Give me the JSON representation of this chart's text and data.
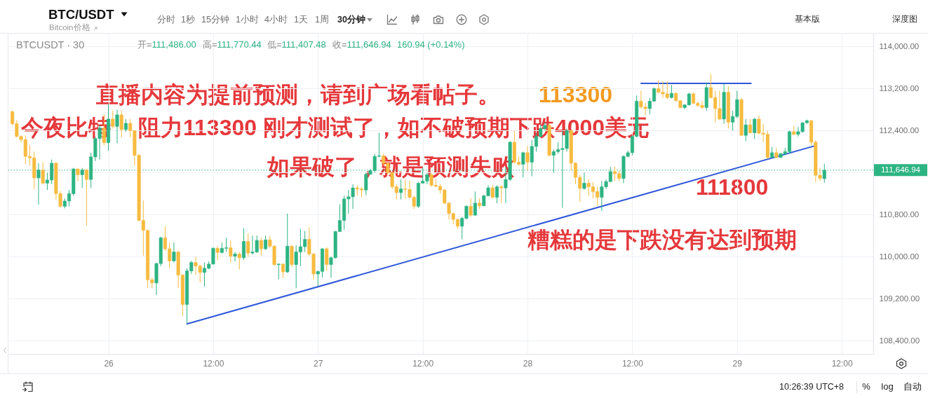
{
  "chart_data": {
    "type": "candlestick",
    "title": "BTC/USDT",
    "subtitle": "Bitcoin价格",
    "annotations": [
      "BTCUSDT · 30",
      "开=111,486.00",
      "高=111,770.44",
      "低=111,407.48",
      "收=111,646.94",
      "160.94 (+0.14%)",
      "直播内容为提前预测，请到广场看帖子。",
      "今夜比特",
      "阻力113300 刚才测试了，如不破预期下跌4000美元",
      "如果破了，就是预测失败",
      "113300",
      "111800",
      "糟糕的是下跌没有达到预期",
      "分时",
      "1秒",
      "15分钟",
      "1小时",
      "4小时",
      "1天",
      "1周",
      "30分钟",
      "基本版",
      "深度图",
      "10:26:39 UTC+8",
      "%",
      "log",
      "自动"
    ],
    "x": [
      "--08-25T13:00",
      "--08-25T13:30",
      "--08-25T14:00",
      "--08-25T14:30",
      "--08-25T15:00",
      "--08-25T15:30",
      "--08-25T16:00",
      "--08-25T16:30",
      "--08-25T17:00",
      "--08-25T17:30",
      "--08-25T18:00",
      "--08-25T18:30",
      "--08-25T19:00",
      "--08-25T19:30",
      "--08-25T20:00",
      "--08-25T20:30",
      "--08-25T21:00",
      "--08-25T21:30",
      "--08-25T22:00",
      "--08-25T22:30",
      "--08-25T23:00",
      "--08-25T23:30",
      "--08-26T00:00",
      "--08-26T00:30",
      "--08-26T01:00",
      "--08-26T01:30",
      "--08-26T02:00",
      "--08-26T02:30",
      "--08-26T03:00",
      "--08-26T03:30",
      "--08-26T04:00",
      "--08-26T04:30",
      "--08-26T05:00",
      "--08-26T05:30",
      "--08-26T06:00",
      "--08-26T06:30",
      "--08-26T07:00",
      "--08-26T07:30",
      "--08-26T08:00",
      "--08-26T08:30",
      "--08-26T09:00",
      "--08-26T09:30",
      "--08-26T10:00",
      "--08-26T10:30",
      "--08-26T11:00",
      "--08-26T11:30",
      "--08-26T12:00",
      "--08-26T12:30",
      "--08-26T13:00",
      "--08-26T13:30",
      "--08-26T14:00",
      "--08-26T14:30",
      "--08-26T15:00",
      "--08-26T15:30",
      "--08-26T16:00",
      "--08-26T16:30",
      "--08-26T17:00",
      "--08-26T17:30",
      "--08-26T18:00",
      "--08-26T18:30",
      "--08-26T19:00",
      "--08-26T19:30",
      "--08-26T20:00",
      "--08-26T20:30",
      "--08-26T21:00",
      "--08-26T21:30",
      "--08-26T22:00",
      "--08-26T22:30",
      "--08-26T23:00",
      "--08-26T23:30",
      "--08-27T00:00",
      "--08-27T00:30",
      "--08-27T01:00",
      "--08-27T01:30",
      "--08-27T02:00",
      "--08-27T02:30",
      "--08-27T03:00",
      "--08-27T03:30",
      "--08-27T04:00",
      "--08-27T04:30",
      "--08-27T05:00",
      "--08-27T05:30",
      "--08-27T06:00",
      "--08-27T06:30",
      "--08-27T07:00",
      "--08-27T07:30",
      "--08-27T08:00",
      "--08-27T08:30",
      "--08-27T09:00",
      "--08-27T09:30",
      "--08-27T10:00",
      "--08-27T10:30",
      "--08-27T11:00",
      "--08-27T11:30",
      "--08-27T12:00",
      "--08-27T12:30",
      "--08-27T13:00",
      "--08-27T13:30",
      "--08-27T14:00",
      "--08-27T14:30",
      "--08-27T15:00",
      "--08-27T15:30",
      "--08-27T16:00",
      "--08-27T16:30",
      "--08-27T17:00",
      "--08-27T17:30",
      "--08-27T18:00",
      "--08-27T18:30",
      "--08-27T19:00",
      "--08-27T19:30",
      "--08-27T20:00",
      "--08-27T20:30",
      "--08-27T21:00",
      "--08-27T21:30",
      "--08-27T22:00",
      "--08-27T22:30",
      "--08-27T23:00",
      "--08-27T23:30",
      "--08-28T00:00",
      "--08-28T00:30",
      "--08-28T01:00",
      "--08-28T01:30",
      "--08-28T02:00",
      "--08-28T02:30",
      "--08-28T03:00",
      "--08-28T03:30",
      "--08-28T04:00",
      "--08-28T04:30",
      "--08-28T05:00",
      "--08-28T05:30",
      "--08-28T06:00",
      "--08-28T06:30",
      "--08-28T07:00",
      "--08-28T07:30",
      "--08-28T08:00",
      "--08-28T08:30",
      "--08-28T09:00",
      "--08-28T09:30",
      "--08-28T10:00",
      "--08-28T10:30",
      "--08-28T11:00",
      "--08-28T11:30",
      "--08-28T12:00",
      "--08-28T12:30",
      "--08-28T13:00",
      "--08-28T13:30",
      "--08-28T14:00",
      "--08-28T14:30",
      "--08-28T15:00",
      "--08-28T15:30",
      "--08-28T16:00",
      "--08-28T16:30",
      "--08-28T17:00",
      "--08-28T17:30",
      "--08-28T18:00",
      "--08-28T18:30",
      "--08-28T19:00",
      "--08-28T19:30",
      "--08-28T20:00",
      "--08-28T20:30",
      "--08-28T21:00",
      "--08-28T21:30",
      "--08-28T22:00",
      "--08-28T22:30",
      "--08-28T23:00",
      "--08-28T23:30",
      "--08-29T00:00",
      "--08-29T00:30",
      "--08-29T01:00",
      "--08-29T01:30",
      "--08-29T02:00",
      "--08-29T02:30",
      "--08-29T03:00",
      "--08-29T03:30",
      "--08-29T04:00",
      "--08-29T04:30",
      "--08-29T05:00",
      "--08-29T05:30",
      "--08-29T06:00",
      "--08-29T06:30",
      "--08-29T07:00",
      "--08-29T07:30",
      "--08-29T08:00",
      "--08-29T08:30",
      "--08-29T09:00",
      "--08-29T09:30",
      "--08-29T10:00"
    ],
    "ohlc": [
      [
        112760,
        112780,
        112500,
        112530
      ],
      [
        112530,
        112600,
        112270,
        112290
      ],
      [
        112290,
        112310,
        112180,
        112230
      ],
      [
        112230,
        112310,
        111760,
        111910
      ],
      [
        111910,
        112130,
        111730,
        111880
      ],
      [
        111880,
        112000,
        111290,
        111500
      ],
      [
        111500,
        111780,
        110990,
        111650
      ],
      [
        111650,
        111800,
        111380,
        111400
      ],
      [
        111400,
        111600,
        111270,
        111460
      ],
      [
        111460,
        111850,
        111380,
        111780
      ],
      [
        111780,
        111800,
        111080,
        111200
      ],
      [
        111200,
        111250,
        110930,
        110960
      ],
      [
        110960,
        111110,
        110920,
        111060
      ],
      [
        111060,
        111270,
        110960,
        111200
      ],
      [
        111200,
        111690,
        111160,
        111670
      ],
      [
        111670,
        111680,
        111440,
        111560
      ],
      [
        111560,
        111690,
        111310,
        111650
      ],
      [
        111650,
        111670,
        110590,
        111470
      ],
      [
        111470,
        111980,
        111310,
        111900
      ],
      [
        111900,
        112290,
        111820,
        112250
      ],
      [
        112250,
        112510,
        111850,
        112450
      ],
      [
        112450,
        112710,
        112120,
        112170
      ],
      [
        112170,
        112910,
        112020,
        112620
      ],
      [
        112620,
        112780,
        112440,
        112480
      ],
      [
        112480,
        112800,
        112160,
        112700
      ],
      [
        112700,
        112780,
        112270,
        112420
      ],
      [
        112420,
        112620,
        112380,
        112540
      ],
      [
        112540,
        112620,
        112270,
        112400
      ],
      [
        112400,
        112400,
        111730,
        111930
      ],
      [
        111930,
        111960,
        110680,
        110690
      ],
      [
        110690,
        111070,
        110020,
        110500
      ],
      [
        110500,
        110520,
        109400,
        109560
      ],
      [
        109560,
        109600,
        109400,
        109500
      ],
      [
        109500,
        109890,
        109270,
        109870
      ],
      [
        109870,
        110380,
        109820,
        110360
      ],
      [
        110360,
        110580,
        110110,
        110150
      ],
      [
        110150,
        110270,
        109780,
        109920
      ],
      [
        109920,
        110270,
        109890,
        110090
      ],
      [
        110090,
        110110,
        109400,
        109650
      ],
      [
        109650,
        109670,
        108870,
        109090
      ],
      [
        109090,
        109780,
        108730,
        109730
      ],
      [
        109730,
        109920,
        109670,
        109890
      ],
      [
        109890,
        110000,
        109650,
        109820
      ],
      [
        109820,
        109850,
        109510,
        109700
      ],
      [
        109700,
        109890,
        109430,
        109780
      ],
      [
        109780,
        109910,
        109760,
        109860
      ],
      [
        109860,
        110180,
        109850,
        110160
      ],
      [
        110160,
        110200,
        109930,
        110080
      ],
      [
        110080,
        110270,
        110060,
        110160
      ],
      [
        110160,
        110360,
        110090,
        110170
      ],
      [
        110170,
        110310,
        109890,
        110010
      ],
      [
        110010,
        110090,
        109910,
        110050
      ],
      [
        110050,
        110090,
        109760,
        109980
      ],
      [
        109980,
        110540,
        109940,
        110290
      ],
      [
        110290,
        110440,
        110000,
        110070
      ],
      [
        110070,
        110400,
        110040,
        110090
      ],
      [
        110090,
        110400,
        110070,
        110310
      ],
      [
        110310,
        110360,
        110020,
        110150
      ],
      [
        110150,
        110400,
        110130,
        110320
      ],
      [
        110320,
        110400,
        110160,
        110200
      ],
      [
        110200,
        110220,
        109820,
        109850
      ],
      [
        109850,
        109870,
        109570,
        109860
      ],
      [
        109860,
        109870,
        109600,
        109710
      ],
      [
        109710,
        110820,
        109690,
        110200
      ],
      [
        110200,
        110220,
        109800,
        109850
      ],
      [
        109850,
        110220,
        109400,
        110090
      ],
      [
        110090,
        110530,
        109820,
        110190
      ],
      [
        110190,
        110490,
        110090,
        110330
      ],
      [
        110330,
        110560,
        110020,
        110050
      ],
      [
        110050,
        110070,
        109560,
        109670
      ],
      [
        109670,
        109730,
        109440,
        109720
      ],
      [
        109720,
        110160,
        109600,
        110150
      ],
      [
        110150,
        110180,
        109730,
        109850
      ],
      [
        109850,
        110000,
        109600,
        109980
      ],
      [
        109980,
        110490,
        109960,
        110480
      ],
      [
        110480,
        111000,
        110470,
        110690
      ],
      [
        110690,
        111160,
        110510,
        111100
      ],
      [
        111100,
        111270,
        110820,
        111140
      ],
      [
        111140,
        111380,
        110910,
        111310
      ],
      [
        111310,
        111360,
        111160,
        111290
      ],
      [
        111290,
        111330,
        111130,
        111270
      ],
      [
        111270,
        111600,
        111170,
        111570
      ],
      [
        111570,
        111670,
        111560,
        111640
      ],
      [
        111640,
        111960,
        111600,
        111910
      ],
      [
        111910,
        112360,
        111890,
        111920
      ],
      [
        111920,
        111960,
        111730,
        111780
      ],
      [
        111780,
        111800,
        111560,
        111600
      ],
      [
        111600,
        111620,
        111290,
        111330
      ],
      [
        111330,
        111380,
        111090,
        111220
      ],
      [
        111220,
        111470,
        111090,
        111290
      ],
      [
        111290,
        111470,
        111110,
        111280
      ],
      [
        111280,
        111440,
        111110,
        111130
      ],
      [
        111130,
        111160,
        110910,
        110960
      ],
      [
        110960,
        111420,
        110930,
        111400
      ],
      [
        111400,
        111690,
        111390,
        111440
      ],
      [
        111440,
        111600,
        111380,
        111560
      ],
      [
        111560,
        111600,
        111330,
        111360
      ],
      [
        111360,
        111470,
        111330,
        111340
      ],
      [
        111340,
        111380,
        111200,
        111270
      ],
      [
        111270,
        111290,
        111000,
        111020
      ],
      [
        111020,
        111040,
        110710,
        110820
      ],
      [
        110820,
        110840,
        110620,
        110710
      ],
      [
        110710,
        110730,
        110530,
        110580
      ],
      [
        110580,
        110760,
        110330,
        110730
      ],
      [
        110730,
        110980,
        110710,
        110960
      ],
      [
        110960,
        111110,
        110760,
        110790
      ],
      [
        110790,
        111240,
        110780,
        111020
      ],
      [
        111020,
        111110,
        110910,
        110970
      ],
      [
        110970,
        111180,
        110960,
        111160
      ],
      [
        111160,
        111360,
        111150,
        111310
      ],
      [
        111310,
        111360,
        111110,
        111130
      ],
      [
        111130,
        111360,
        111020,
        111330
      ],
      [
        111330,
        111360,
        111020,
        111310
      ],
      [
        111310,
        111710,
        111020,
        111470
      ],
      [
        111470,
        112200,
        111440,
        112180
      ],
      [
        112180,
        112400,
        111780,
        111800
      ],
      [
        111800,
        111910,
        111730,
        111760
      ],
      [
        111760,
        112000,
        111510,
        111980
      ],
      [
        111980,
        112110,
        111640,
        111800
      ],
      [
        111800,
        112220,
        111530,
        112100
      ],
      [
        112100,
        112360,
        112000,
        112290
      ],
      [
        112290,
        112510,
        112270,
        112440
      ],
      [
        112440,
        112560,
        112400,
        112500
      ],
      [
        112500,
        112530,
        111910,
        111930
      ],
      [
        111930,
        112040,
        111600,
        112000
      ],
      [
        112000,
        112180,
        111960,
        112040
      ],
      [
        112040,
        112400,
        110930,
        112060
      ],
      [
        112060,
        112440,
        112000,
        112400
      ],
      [
        112400,
        112420,
        111640,
        111780
      ],
      [
        111780,
        111800,
        111380,
        111510
      ],
      [
        111510,
        111560,
        111040,
        111300
      ],
      [
        111300,
        111600,
        111270,
        111400
      ],
      [
        111400,
        111470,
        111160,
        111330
      ],
      [
        111330,
        111420,
        111110,
        111240
      ],
      [
        111240,
        111330,
        110960,
        111130
      ],
      [
        111130,
        111440,
        110870,
        111330
      ],
      [
        111330,
        111470,
        111290,
        111430
      ],
      [
        111430,
        111710,
        111420,
        111620
      ],
      [
        111620,
        111710,
        111440,
        111580
      ],
      [
        111580,
        111640,
        111440,
        111490
      ],
      [
        111490,
        111930,
        111400,
        111910
      ],
      [
        111910,
        112020,
        111890,
        111980
      ],
      [
        111980,
        112310,
        111930,
        112290
      ],
      [
        112290,
        113070,
        112270,
        112960
      ],
      [
        112960,
        113160,
        112820,
        112850
      ],
      [
        112850,
        112930,
        112690,
        112820
      ],
      [
        112820,
        113020,
        112710,
        112960
      ],
      [
        112960,
        113220,
        112950,
        113200
      ],
      [
        113200,
        113360,
        113110,
        113130
      ],
      [
        113130,
        113340,
        113020,
        113100
      ],
      [
        113100,
        113340,
        113000,
        113030
      ],
      [
        113030,
        113270,
        113010,
        113110
      ],
      [
        113110,
        113130,
        112950,
        112970
      ],
      [
        112970,
        112980,
        112820,
        112840
      ],
      [
        112840,
        112900,
        112810,
        112890
      ],
      [
        112890,
        113120,
        112880,
        113100
      ],
      [
        113100,
        113130,
        112910,
        112920
      ],
      [
        112920,
        112960,
        112850,
        112880
      ],
      [
        112880,
        112960,
        112820,
        112840
      ],
      [
        112840,
        113320,
        112780,
        113220
      ],
      [
        113220,
        113480,
        113010,
        113030
      ],
      [
        113030,
        113160,
        112560,
        112820
      ],
      [
        112820,
        113160,
        112600,
        112620
      ],
      [
        112620,
        113290,
        112530,
        113130
      ],
      [
        113130,
        113250,
        112440,
        112560
      ],
      [
        112560,
        112780,
        112400,
        112670
      ],
      [
        112670,
        113160,
        112640,
        112990
      ],
      [
        112990,
        113020,
        112300,
        112310
      ],
      [
        112310,
        112620,
        112200,
        112510
      ],
      [
        112510,
        112620,
        112340,
        112360
      ],
      [
        112360,
        112640,
        112240,
        112620
      ],
      [
        112620,
        112690,
        112330,
        112350
      ],
      [
        112350,
        112530,
        112180,
        112330
      ],
      [
        112330,
        112400,
        111870,
        111890
      ],
      [
        111890,
        112090,
        111880,
        111980
      ],
      [
        111980,
        112070,
        111870,
        111890
      ],
      [
        111890,
        111980,
        111880,
        111960
      ],
      [
        111960,
        112070,
        111930,
        112000
      ],
      [
        112000,
        112400,
        111960,
        112380
      ],
      [
        112380,
        112490,
        112310,
        112330
      ],
      [
        112330,
        112470,
        112290,
        112380
      ],
      [
        112380,
        112560,
        112360,
        112550
      ],
      [
        112550,
        112610,
        112530,
        112590
      ],
      [
        112590,
        112600,
        112120,
        112180
      ],
      [
        112180,
        112220,
        111420,
        111550
      ],
      [
        111550,
        111690,
        111440,
        111490
      ],
      [
        111486,
        111770.44,
        111407.48,
        111646.94
      ]
    ],
    "colors": [
      "#f7bb3f",
      "#f7bb3f",
      "#f7bb3f",
      "#f7bb3f",
      "#f7bb3f",
      "#f7bb3f",
      "#2db483",
      "#f7bb3f",
      "#2db483",
      "#2db483",
      "#f7bb3f",
      "#f7bb3f",
      "#2db483",
      "#2db483",
      "#2db483",
      "#f7bb3f",
      "#2db483",
      "#f7bb3f",
      "#2db483",
      "#2db483",
      "#2db483",
      "#f7bb3f",
      "#2db483",
      "#f7bb3f",
      "#2db483",
      "#f7bb3f",
      "#2db483",
      "#f7bb3f",
      "#f7bb3f",
      "#f7bb3f",
      "#f7bb3f",
      "#f7bb3f",
      "#f7bb3f",
      "#2db483",
      "#2db483",
      "#f7bb3f",
      "#f7bb3f",
      "#2db483",
      "#f7bb3f",
      "#f7bb3f",
      "#2db483",
      "#2db483",
      "#f7bb3f",
      "#f7bb3f",
      "#2db483",
      "#2db483",
      "#2db483",
      "#f7bb3f",
      "#2db483",
      "#2db483",
      "#f7bb3f",
      "#2db483",
      "#f7bb3f",
      "#2db483",
      "#f7bb3f",
      "#2db483",
      "#2db483",
      "#f7bb3f",
      "#2db483",
      "#f7bb3f",
      "#f7bb3f",
      "#2db483",
      "#f7bb3f",
      "#2db483",
      "#f7bb3f",
      "#2db483",
      "#2db483",
      "#2db483",
      "#f7bb3f",
      "#f7bb3f",
      "#2db483",
      "#2db483",
      "#f7bb3f",
      "#2db483",
      "#2db483",
      "#2db483",
      "#2db483",
      "#2db483",
      "#2db483",
      "#f7bb3f",
      "#f7bb3f",
      "#2db483",
      "#2db483",
      "#2db483",
      "#2db483",
      "#f7bb3f",
      "#f7bb3f",
      "#f7bb3f",
      "#f7bb3f",
      "#2db483",
      "#f7bb3f",
      "#f7bb3f",
      "#f7bb3f",
      "#2db483",
      "#2db483",
      "#2db483",
      "#f7bb3f",
      "#f7bb3f",
      "#f7bb3f",
      "#f7bb3f",
      "#f7bb3f",
      "#f7bb3f",
      "#f7bb3f",
      "#2db483",
      "#2db483",
      "#f7bb3f",
      "#2db483",
      "#f7bb3f",
      "#2db483",
      "#2db483",
      "#f7bb3f",
      "#2db483",
      "#f7bb3f",
      "#2db483",
      "#2db483",
      "#f7bb3f",
      "#f7bb3f",
      "#2db483",
      "#f7bb3f",
      "#2db483",
      "#2db483",
      "#2db483",
      "#2db483",
      "#f7bb3f",
      "#2db483",
      "#2db483",
      "#2db483",
      "#2db483",
      "#f7bb3f",
      "#f7bb3f",
      "#f7bb3f",
      "#2db483",
      "#f7bb3f",
      "#f7bb3f",
      "#f7bb3f",
      "#2db483",
      "#2db483",
      "#2db483",
      "#f7bb3f",
      "#f7bb3f",
      "#2db483",
      "#2db483",
      "#2db483",
      "#2db483",
      "#f7bb3f",
      "#f7bb3f",
      "#2db483",
      "#2db483",
      "#f7bb3f",
      "#f7bb3f",
      "#f7bb3f",
      "#2db483",
      "#f7bb3f",
      "#f7bb3f",
      "#2db483",
      "#2db483",
      "#f7bb3f",
      "#f7bb3f",
      "#f7bb3f",
      "#2db483",
      "#f7bb3f",
      "#f7bb3f",
      "#f7bb3f",
      "#2db483",
      "#f7bb3f",
      "#2db483",
      "#2db483",
      "#f7bb3f",
      "#2db483",
      "#f7bb3f",
      "#2db483",
      "#f7bb3f",
      "#f7bb3f",
      "#f7bb3f",
      "#2db483",
      "#f7bb3f",
      "#2db483",
      "#2db483",
      "#2db483",
      "#f7bb3f",
      "#2db483",
      "#2db483",
      "#2db483",
      "#f7bb3f",
      "#f7bb3f",
      "#f7bb3f",
      "#2db483"
    ],
    "series": [
      {
        "type": "line",
        "color": "#2f57d8",
        "x": [
          "--08-26T09:00",
          "--08-29T08:54"
        ],
        "values": [
          108720,
          112110
        ]
      },
      {
        "type": "line",
        "color": "#2f57d8",
        "x": [
          "--08-28T13:00",
          "--08-29T01:36"
        ],
        "values": [
          113300,
          113300
        ]
      }
    ],
    "ref_lines": [
      {
        "axis": "y",
        "value": 111646.94,
        "label": "111,646.94",
        "color": "#2db483",
        "line_style": "dotted"
      }
    ],
    "xlim": [
      "--08-25T12:57",
      "--08-29T15:12"
    ],
    "ylim": [
      108150,
      114260
    ],
    "xticks": [
      {
        "value": "--08-26",
        "label": "26"
      },
      {
        "value": "--08-26T12:00",
        "label": "12:00"
      },
      {
        "value": "--08-27",
        "label": "27"
      },
      {
        "value": "--08-27T12:00",
        "label": "12:00"
      },
      {
        "value": "--08-28",
        "label": "28"
      },
      {
        "value": "--08-28T12:00",
        "label": "12:00"
      },
      {
        "value": "--08-29",
        "label": "29"
      },
      {
        "value": "--08-29T12:00",
        "label": "12:00"
      }
    ],
    "yticks": [
      {
        "value": 108400,
        "label": "108,400.00"
      },
      {
        "value": 109200,
        "label": "109,200.00"
      },
      {
        "value": 110000,
        "label": "110,000.00"
      },
      {
        "value": 110800,
        "label": "110,800.00"
      },
      {
        "value": 111600,
        "label": null
      },
      {
        "value": 112400,
        "label": "112,400.00"
      },
      {
        "value": 113200,
        "label": "113,200.00"
      },
      {
        "value": 114000,
        "label": "114,000.00"
      }
    ],
    "grid": true
  }
}
